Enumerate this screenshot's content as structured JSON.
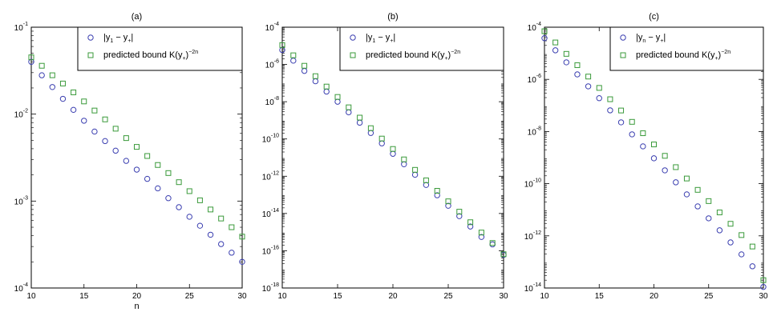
{
  "chart_data": [
    {
      "type": "scatter",
      "title": "(a)",
      "xlabel": "n",
      "ylabel": "",
      "yscale": "log",
      "xlim": [
        10,
        30
      ],
      "ylim_exp": [
        -4,
        -1
      ],
      "xticks": [
        10,
        15,
        20,
        25,
        30
      ],
      "yticks_exp": [
        -4,
        -3,
        -2,
        -1
      ],
      "legend_position": "top-right",
      "x": [
        10,
        11,
        12,
        13,
        14,
        15,
        16,
        17,
        18,
        19,
        20,
        21,
        22,
        23,
        24,
        25,
        26,
        27,
        28,
        29,
        30
      ],
      "series": [
        {
          "name": "|y1 − y+|",
          "label_parts": [
            "|y",
            "1",
            " − y",
            "+",
            "|"
          ],
          "marker": "circle",
          "color": "#3b3fb0",
          "values": [
            0.04,
            0.028,
            0.0205,
            0.015,
            0.0112,
            0.0084,
            0.0063,
            0.0049,
            0.0038,
            0.0029,
            0.0023,
            0.0018,
            0.0014,
            0.00108,
            0.00085,
            0.00066,
            0.00052,
            0.00041,
            0.00032,
            0.000255,
            0.0002
          ]
        },
        {
          "name": "predicted bound K(y+)^−2n",
          "label_parts": [
            "predicted bound K(y",
            "+",
            ")",
            "−2n"
          ],
          "marker": "square",
          "color": "#3a9a3a",
          "values": [
            0.045,
            0.036,
            0.028,
            0.0225,
            0.0178,
            0.014,
            0.011,
            0.0087,
            0.0068,
            0.0053,
            0.0042,
            0.0033,
            0.0026,
            0.0021,
            0.00165,
            0.0013,
            0.00102,
            0.0008,
            0.00063,
            0.0005,
            0.00039
          ]
        }
      ]
    },
    {
      "type": "scatter",
      "title": "(b)",
      "xlabel": "",
      "ylabel": "",
      "yscale": "log",
      "xlim": [
        10,
        30
      ],
      "ylim_exp": [
        -18,
        -4
      ],
      "xticks": [
        10,
        15,
        20,
        25,
        30
      ],
      "yticks_exp": [
        -18,
        -16,
        -14,
        -12,
        -10,
        -8,
        -6,
        -4
      ],
      "legend_position": "top-right",
      "x": [
        10,
        11,
        12,
        13,
        14,
        15,
        16,
        17,
        18,
        19,
        20,
        21,
        22,
        23,
        24,
        25,
        26,
        27,
        28,
        29,
        30
      ],
      "series": [
        {
          "name": "|y1 − y+|",
          "label_parts": [
            "|y",
            "1",
            " − y",
            "+",
            "|"
          ],
          "marker": "circle",
          "color": "#3b3fb0",
          "values": [
            6e-06,
            1.6e-06,
            4.5e-07,
            1.25e-07,
            3.5e-08,
            1e-08,
            2.7e-09,
            7.5e-10,
            2.1e-10,
            5.8e-11,
            1.6e-11,
            4.4e-12,
            1.2e-12,
            3.4e-13,
            9.5e-14,
            2.6e-14,
            7.2e-15,
            2e-15,
            5.5e-16,
            2.2e-16,
            6e-17
          ]
        },
        {
          "name": "predicted bound K(y+)^−2n",
          "label_parts": [
            "predicted bound K(y",
            "+",
            ")",
            "−2n"
          ],
          "marker": "square",
          "color": "#3a9a3a",
          "values": [
            1.1e-05,
            3.1e-06,
            8.5e-07,
            2.35e-07,
            6.5e-08,
            1.8e-08,
            5e-09,
            1.4e-09,
            3.8e-10,
            1.05e-10,
            2.9e-11,
            8e-12,
            2.2e-12,
            6e-13,
            1.65e-13,
            4.5e-14,
            1.25e-14,
            3.4e-15,
            9.5e-16,
            2.6e-16,
            6.5e-17
          ]
        }
      ]
    },
    {
      "type": "scatter",
      "title": "(c)",
      "xlabel": "",
      "ylabel": "",
      "yscale": "log",
      "xlim": [
        10,
        30
      ],
      "ylim_exp": [
        -14,
        -4
      ],
      "xticks": [
        10,
        15,
        20,
        25,
        30
      ],
      "yticks_exp": [
        -14,
        -12,
        -10,
        -8,
        -6,
        -4
      ],
      "legend_position": "top-right",
      "x": [
        10,
        11,
        12,
        13,
        14,
        15,
        16,
        17,
        18,
        19,
        20,
        21,
        22,
        23,
        24,
        25,
        26,
        27,
        28,
        29,
        30
      ],
      "series": [
        {
          "name": "|yn − y+|",
          "label_parts": [
            "|y",
            "n",
            " − y",
            "+",
            "|"
          ],
          "marker": "circle",
          "color": "#3b3fb0",
          "values": [
            3.8e-05,
            1.3e-05,
            4.5e-06,
            1.55e-06,
            5.4e-07,
            1.9e-07,
            6.5e-08,
            2.25e-08,
            7.8e-09,
            2.7e-09,
            9.4e-10,
            3.25e-10,
            1.13e-10,
            3.9e-11,
            1.35e-11,
            4.7e-12,
            1.63e-12,
            5.6e-13,
            1.95e-13,
            6.8e-14,
            1.1e-14
          ]
        },
        {
          "name": "predicted bound K(y+)^−2n",
          "label_parts": [
            "predicted bound K(y",
            "+",
            ")",
            "−2n"
          ],
          "marker": "square",
          "color": "#3a9a3a",
          "values": [
            7e-05,
            2.6e-05,
            9.5e-06,
            3.5e-06,
            1.28e-06,
            4.7e-07,
            1.73e-07,
            6.4e-08,
            2.35e-08,
            8.6e-09,
            3.2e-09,
            1.17e-09,
            4.3e-10,
            1.58e-10,
            5.8e-11,
            2.15e-11,
            7.9e-12,
            2.9e-12,
            1.07e-12,
            3.9e-13,
            2e-14
          ]
        }
      ]
    }
  ]
}
